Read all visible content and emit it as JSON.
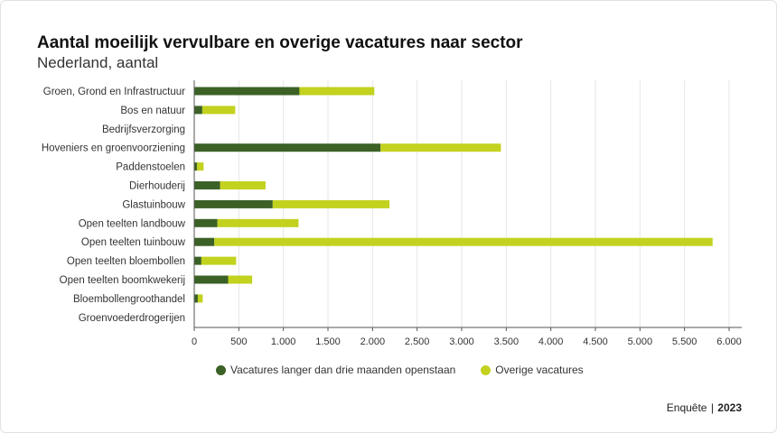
{
  "header": {
    "title": "Aantal moeilijk vervulbare en overige vacatures naar sector",
    "subtitle": "Nederland, aantal"
  },
  "footer": {
    "source_label": "Enquête",
    "separator": "|",
    "year": "2023"
  },
  "colors": {
    "series1": "#3b6126",
    "series2": "#c2d21f",
    "grid": "#e6e6e6",
    "axis": "#555555",
    "text": "#333333"
  },
  "chart_data": {
    "type": "bar",
    "orientation": "horizontal",
    "stacked": true,
    "title": "Aantal moeilijk vervulbare en overige vacatures naar sector",
    "subtitle": "Nederland, aantal",
    "categories": [
      "Groen, Grond en Infrastructuur",
      "Bos en natuur",
      "Bedrijfsverzorging",
      "Hoveniers en groenvoorziening",
      "Paddenstoelen",
      "Dierhouderij",
      "Glastuinbouw",
      "Open teelten landbouw",
      "Open teelten tuinbouw",
      "Open teelten bloembollen",
      "Open teelten boomkwekerij",
      "Bloembollengroothandel",
      "Groenvoederdrogerijen"
    ],
    "series": [
      {
        "name": "Vacatures langer dan drie maanden openstaan",
        "values": [
          1180,
          90,
          0,
          2090,
          30,
          290,
          880,
          260,
          225,
          80,
          380,
          40,
          0
        ]
      },
      {
        "name": "Overige vacatures",
        "values": [
          840,
          370,
          0,
          1350,
          75,
          510,
          1310,
          910,
          5590,
          390,
          270,
          55,
          0
        ]
      }
    ],
    "xlim": [
      0,
      6000
    ],
    "xticks": [
      0,
      500,
      1000,
      1500,
      2000,
      2500,
      3000,
      3500,
      4000,
      4500,
      5000,
      5500,
      6000
    ],
    "xtick_labels": [
      "0",
      "500",
      "1.000",
      "1.500",
      "2.000",
      "2.500",
      "3.000",
      "3.500",
      "4.000",
      "4.500",
      "5.000",
      "5.500",
      "6.000"
    ],
    "grid": "vertical",
    "legend": "bottom"
  }
}
